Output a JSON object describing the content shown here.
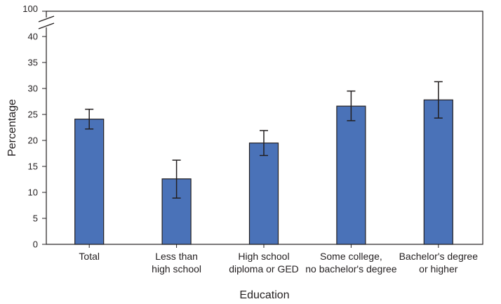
{
  "chart_data": {
    "type": "bar",
    "xlabel": "Education",
    "ylabel": "Percentage",
    "categories": [
      [
        "Total"
      ],
      [
        "Less than",
        "high school"
      ],
      [
        "High school",
        "diploma or GED"
      ],
      [
        "Some college,",
        "no bachelor's degree"
      ],
      [
        "Bachelor's degree",
        "or higher"
      ]
    ],
    "values": [
      24.1,
      12.6,
      19.5,
      26.6,
      27.8
    ],
    "error_low": [
      22.2,
      8.9,
      17.1,
      23.8,
      24.3
    ],
    "error_high": [
      26.0,
      16.2,
      21.9,
      29.5,
      31.3
    ],
    "yticks": [
      0,
      5,
      10,
      15,
      20,
      25,
      30,
      35,
      40
    ],
    "ytick_break_label": "100",
    "ylim": [
      0,
      100
    ],
    "axis_break": true,
    "bar_color": "#4a72b8",
    "bar_edge_color": "#231f20"
  }
}
